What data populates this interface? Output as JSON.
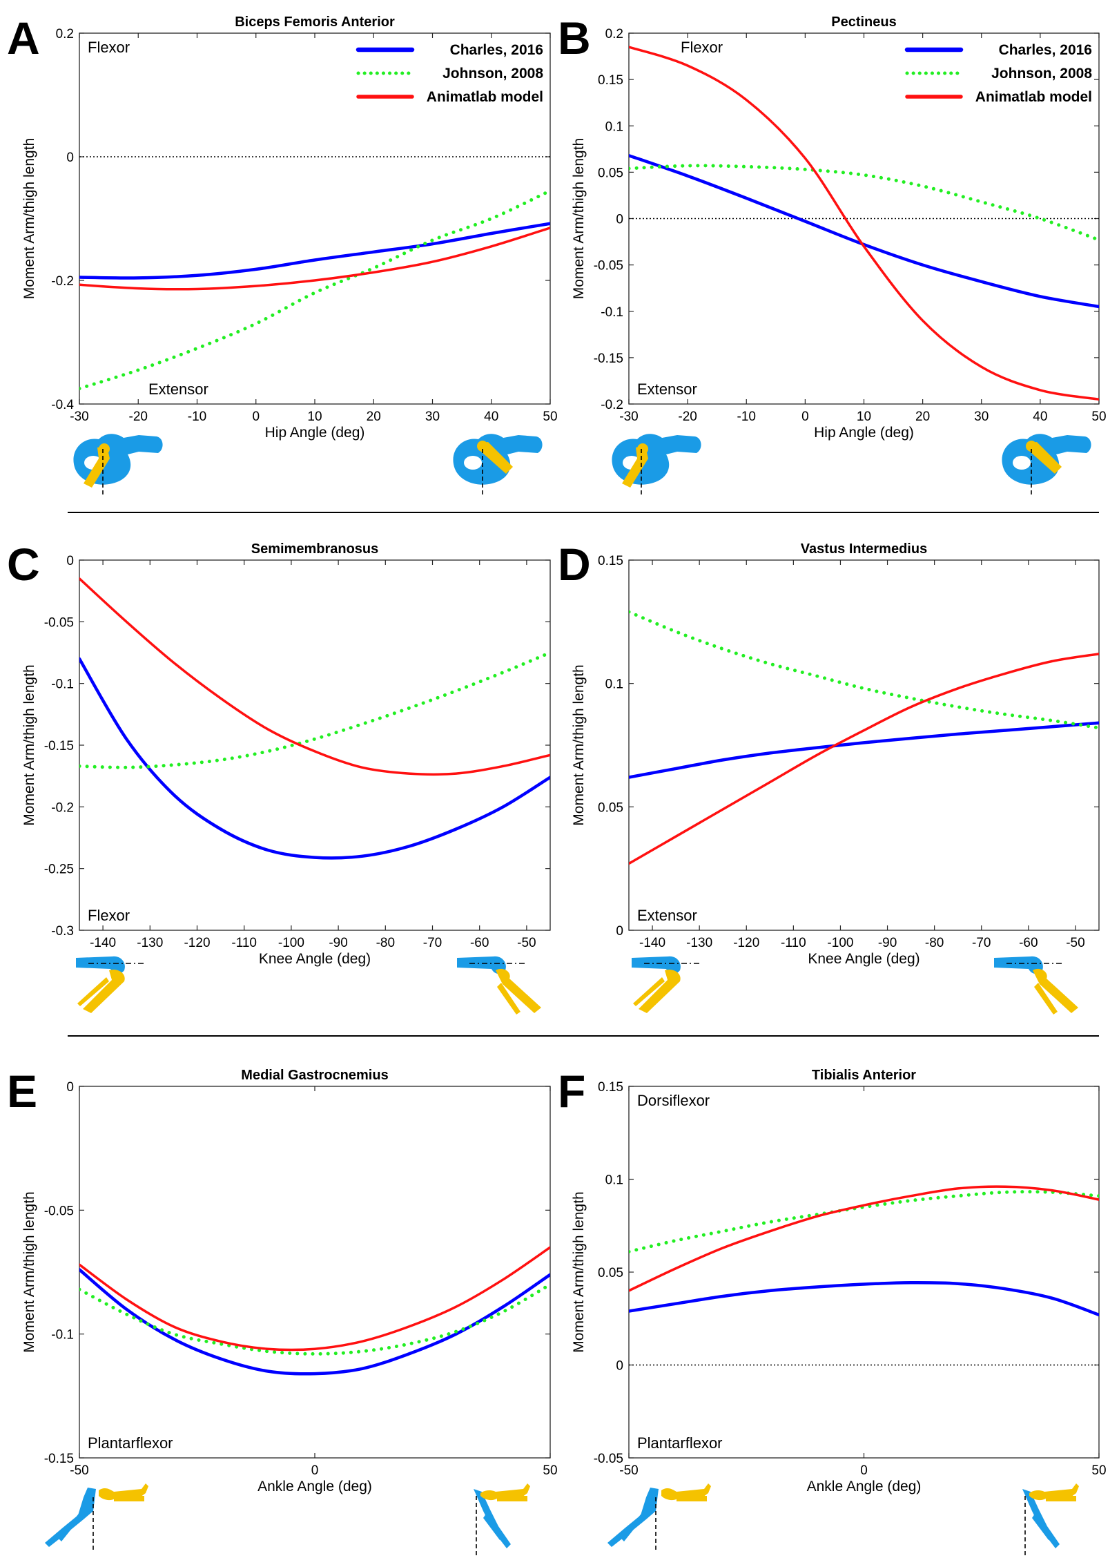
{
  "figure": {
    "colors": {
      "charles": "#0000ff",
      "johnson": "#22ee22",
      "animatlab": "#ff1010",
      "bone_blue": "#1a9be6",
      "bone_yellow": "#f5c200"
    },
    "icons": [
      "hip-joint-icon",
      "knee-joint-icon",
      "ankle-joint-icon"
    ]
  },
  "chart_data": [
    {
      "panel": "A",
      "type": "line",
      "title": "Biceps Femoris Anterior",
      "xlabel": "Hip Angle (deg)",
      "ylabel": "Moment Arm/thigh length",
      "xlim": [
        -30,
        50
      ],
      "ylim": [
        -0.4,
        0.2
      ],
      "xticks": [
        -30,
        -20,
        -10,
        0,
        10,
        20,
        30,
        40,
        50
      ],
      "yticks": [
        -0.4,
        -0.2,
        0,
        0.2
      ],
      "ytick_labels": [
        "-0.4",
        "-0.2",
        "0",
        "0.2"
      ],
      "zero_line": true,
      "annotations": [
        {
          "text": "Flexor",
          "pos": "top-left"
        },
        {
          "text": "Extensor",
          "pos": "bottom-left-indent"
        }
      ],
      "legend": {
        "placement": "top-right",
        "entries": [
          "Charles, 2016",
          "Johnson, 2008",
          "Animatlab model"
        ]
      },
      "series": [
        {
          "name": "Charles, 2016",
          "x": [
            -30,
            -20,
            -10,
            0,
            10,
            20,
            30,
            40,
            50
          ],
          "y": [
            -0.195,
            -0.196,
            -0.192,
            -0.182,
            -0.167,
            -0.154,
            -0.141,
            -0.124,
            -0.108
          ]
        },
        {
          "name": "Johnson, 2008",
          "x": [
            -30,
            -20,
            -10,
            0,
            10,
            20,
            30,
            40,
            50
          ],
          "y": [
            -0.375,
            -0.345,
            -0.31,
            -0.27,
            -0.22,
            -0.18,
            -0.135,
            -0.1,
            -0.055
          ]
        },
        {
          "name": "Animatlab model",
          "x": [
            -30,
            -20,
            -10,
            0,
            10,
            20,
            30,
            40,
            50
          ],
          "y": [
            -0.207,
            -0.213,
            -0.214,
            -0.209,
            -0.2,
            -0.187,
            -0.17,
            -0.145,
            -0.115
          ]
        }
      ]
    },
    {
      "panel": "B",
      "type": "line",
      "title": "Pectineus",
      "xlabel": "Hip Angle (deg)",
      "ylabel": "Moment Arm/thigh length",
      "xlim": [
        -30,
        50
      ],
      "ylim": [
        -0.2,
        0.2
      ],
      "xticks": [
        -30,
        -20,
        -10,
        0,
        10,
        20,
        30,
        40,
        50
      ],
      "yticks": [
        -0.2,
        -0.15,
        -0.1,
        -0.05,
        0,
        0.05,
        0.1,
        0.15,
        0.2
      ],
      "ytick_labels": [
        "-0.2",
        "-0.15",
        "-0.1",
        "-0.05",
        "0",
        "0.05",
        "0.1",
        "0.15",
        "0.2"
      ],
      "zero_line": true,
      "annotations": [
        {
          "text": "Flexor",
          "pos": "top-left-indent"
        },
        {
          "text": "Extensor",
          "pos": "bottom-left"
        }
      ],
      "legend": {
        "placement": "top-right",
        "entries": [
          "Charles, 2016",
          "Johnson, 2008",
          "Animatlab model"
        ]
      },
      "series": [
        {
          "name": "Charles, 2016",
          "x": [
            -30,
            -20,
            -10,
            0,
            10,
            20,
            30,
            40,
            50
          ],
          "y": [
            0.068,
            0.046,
            0.022,
            -0.003,
            -0.028,
            -0.05,
            -0.068,
            -0.084,
            -0.095
          ]
        },
        {
          "name": "Johnson, 2008",
          "x": [
            -30,
            -20,
            -10,
            0,
            10,
            20,
            30,
            40,
            50
          ],
          "y": [
            0.054,
            0.057,
            0.056,
            0.053,
            0.047,
            0.035,
            0.018,
            0.0,
            -0.023
          ]
        },
        {
          "name": "Animatlab model",
          "x": [
            -30,
            -20,
            -10,
            0,
            10,
            20,
            30,
            40,
            50
          ],
          "y": [
            0.185,
            0.165,
            0.128,
            0.065,
            -0.03,
            -0.11,
            -0.16,
            -0.185,
            -0.195
          ]
        }
      ]
    },
    {
      "panel": "C",
      "type": "line",
      "title": "Semimembranosus",
      "xlabel": "Knee Angle (deg)",
      "ylabel": "Moment Arm/thigh length",
      "xlim": [
        -145,
        -45
      ],
      "ylim": [
        -0.3,
        0
      ],
      "xticks": [
        -140,
        -130,
        -120,
        -110,
        -100,
        -90,
        -80,
        -70,
        -60,
        -50
      ],
      "yticks": [
        -0.3,
        -0.25,
        -0.2,
        -0.15,
        -0.1,
        -0.05,
        0
      ],
      "ytick_labels": [
        "-0.3",
        "-0.25",
        "-0.2",
        "-0.15",
        "-0.1",
        "-0.05",
        "0"
      ],
      "zero_line": false,
      "annotations": [
        {
          "text": "Flexor",
          "pos": "bottom-left"
        }
      ],
      "series": [
        {
          "name": "Charles, 2016",
          "x": [
            -145,
            -135,
            -125,
            -115,
            -105,
            -95,
            -85,
            -75,
            -65,
            -55,
            -45
          ],
          "y": [
            -0.08,
            -0.145,
            -0.19,
            -0.218,
            -0.235,
            -0.241,
            -0.24,
            -0.232,
            -0.218,
            -0.2,
            -0.176
          ]
        },
        {
          "name": "Johnson, 2008",
          "x": [
            -145,
            -135,
            -125,
            -115,
            -105,
            -95,
            -85,
            -75,
            -65,
            -55,
            -45
          ],
          "y": [
            -0.167,
            -0.168,
            -0.166,
            -0.162,
            -0.155,
            -0.145,
            -0.133,
            -0.12,
            -0.106,
            -0.091,
            -0.075
          ]
        },
        {
          "name": "Animatlab model",
          "x": [
            -145,
            -135,
            -125,
            -115,
            -105,
            -95,
            -85,
            -75,
            -65,
            -55,
            -45
          ],
          "y": [
            -0.015,
            -0.05,
            -0.083,
            -0.112,
            -0.137,
            -0.155,
            -0.168,
            -0.173,
            -0.173,
            -0.167,
            -0.158
          ]
        }
      ]
    },
    {
      "panel": "D",
      "type": "line",
      "title": "Vastus Intermedius",
      "xlabel": "Knee Angle (deg)",
      "ylabel": "Moment Arm/thigh length",
      "xlim": [
        -145,
        -45
      ],
      "ylim": [
        0,
        0.15
      ],
      "xticks": [
        -140,
        -130,
        -120,
        -110,
        -100,
        -90,
        -80,
        -70,
        -60,
        -50
      ],
      "yticks": [
        0,
        0.05,
        0.1,
        0.15
      ],
      "ytick_labels": [
        "0",
        "0.05",
        "0.1",
        "0.15"
      ],
      "zero_line": false,
      "annotations": [
        {
          "text": "Extensor",
          "pos": "bottom-left"
        }
      ],
      "series": [
        {
          "name": "Charles, 2016",
          "x": [
            -145,
            -135,
            -125,
            -115,
            -105,
            -95,
            -85,
            -75,
            -65,
            -55,
            -45
          ],
          "y": [
            0.062,
            0.0655,
            0.069,
            0.0718,
            0.074,
            0.076,
            0.0778,
            0.0795,
            0.081,
            0.0825,
            0.084
          ]
        },
        {
          "name": "Johnson, 2008",
          "x": [
            -145,
            -135,
            -125,
            -115,
            -105,
            -95,
            -85,
            -75,
            -65,
            -55,
            -45
          ],
          "y": [
            0.129,
            0.121,
            0.114,
            0.108,
            0.103,
            0.098,
            0.094,
            0.0905,
            0.0875,
            0.085,
            0.082
          ]
        },
        {
          "name": "Animatlab model",
          "x": [
            -145,
            -135,
            -125,
            -115,
            -105,
            -95,
            -85,
            -75,
            -65,
            -55,
            -45
          ],
          "y": [
            0.027,
            0.038,
            0.049,
            0.06,
            0.071,
            0.081,
            0.0905,
            0.098,
            0.104,
            0.109,
            0.112
          ]
        }
      ]
    },
    {
      "panel": "E",
      "type": "line",
      "title": "Medial Gastrocnemius",
      "xlabel": "Ankle Angle (deg)",
      "ylabel": "Moment Arm/thigh length",
      "xlim": [
        -50,
        50
      ],
      "ylim": [
        -0.15,
        0
      ],
      "xticks": [
        -50,
        0,
        50
      ],
      "yticks": [
        -0.15,
        -0.1,
        -0.05,
        0
      ],
      "ytick_labels": [
        "-0.15",
        "-0.1",
        "-0.05",
        "0"
      ],
      "zero_line": false,
      "annotations": [
        {
          "text": "Plantarflexor",
          "pos": "bottom-left"
        }
      ],
      "series": [
        {
          "name": "Charles, 2016",
          "x": [
            -50,
            -40,
            -30,
            -20,
            -10,
            0,
            10,
            20,
            30,
            40,
            50
          ],
          "y": [
            -0.074,
            -0.09,
            -0.102,
            -0.11,
            -0.115,
            -0.116,
            -0.114,
            -0.108,
            -0.1,
            -0.089,
            -0.076
          ]
        },
        {
          "name": "Johnson, 2008",
          "x": [
            -50,
            -40,
            -30,
            -20,
            -10,
            0,
            10,
            20,
            30,
            40,
            50
          ],
          "y": [
            -0.082,
            -0.092,
            -0.1,
            -0.104,
            -0.107,
            -0.108,
            -0.107,
            -0.104,
            -0.099,
            -0.091,
            -0.08
          ]
        },
        {
          "name": "Animatlab model",
          "x": [
            -50,
            -40,
            -30,
            -20,
            -10,
            0,
            10,
            20,
            30,
            40,
            50
          ],
          "y": [
            -0.072,
            -0.086,
            -0.097,
            -0.103,
            -0.106,
            -0.106,
            -0.103,
            -0.097,
            -0.089,
            -0.078,
            -0.065
          ]
        }
      ]
    },
    {
      "panel": "F",
      "type": "line",
      "title": "Tibialis Anterior",
      "xlabel": "Ankle Angle (deg)",
      "ylabel": "Moment Arm/thigh length",
      "xlim": [
        -50,
        50
      ],
      "ylim": [
        -0.05,
        0.15
      ],
      "xticks": [
        -50,
        0,
        50
      ],
      "yticks": [
        -0.05,
        0,
        0.05,
        0.1,
        0.15
      ],
      "ytick_labels": [
        "-0.05",
        "0",
        "0.05",
        "0.1",
        "0.15"
      ],
      "zero_line": true,
      "annotations": [
        {
          "text": "Dorsiflexor",
          "pos": "top-left"
        },
        {
          "text": "Plantarflexor",
          "pos": "bottom-left"
        }
      ],
      "series": [
        {
          "name": "Charles, 2016",
          "x": [
            -50,
            -40,
            -30,
            -20,
            -10,
            0,
            10,
            20,
            30,
            40,
            50
          ],
          "y": [
            0.029,
            0.033,
            0.037,
            0.04,
            0.042,
            0.0435,
            0.0443,
            0.0438,
            0.041,
            0.036,
            0.027
          ]
        },
        {
          "name": "Johnson, 2008",
          "x": [
            -50,
            -40,
            -30,
            -20,
            -10,
            0,
            10,
            20,
            30,
            40,
            50
          ],
          "y": [
            0.061,
            0.067,
            0.072,
            0.077,
            0.081,
            0.085,
            0.0885,
            0.091,
            0.093,
            0.093,
            0.091
          ]
        },
        {
          "name": "Animatlab model",
          "x": [
            -50,
            -40,
            -30,
            -20,
            -10,
            0,
            10,
            20,
            30,
            40,
            50
          ],
          "y": [
            0.04,
            0.052,
            0.063,
            0.072,
            0.08,
            0.086,
            0.091,
            0.095,
            0.096,
            0.094,
            0.089
          ]
        }
      ]
    }
  ]
}
